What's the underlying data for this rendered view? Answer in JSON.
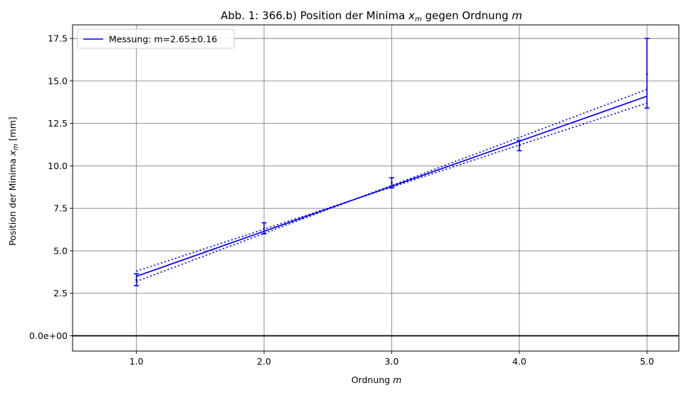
{
  "chart_data": {
    "type": "line",
    "title_prefix": "Abb. 1: 366.b) Position der Minima ",
    "title_var": "x",
    "title_var_sub": "m",
    "title_mid": " gegen Ordnung ",
    "title_var2": "m",
    "xlabel_prefix": "Ordnung ",
    "xlabel_var": "m",
    "ylabel_prefix": "Position der Minima ",
    "ylabel_var": "x",
    "ylabel_var_sub": "m",
    "ylabel_suffix": " [mm]",
    "xlim": [
      0.5,
      5.25
    ],
    "ylim": [
      -0.9,
      18.3
    ],
    "x_ticks": [
      1.0,
      2.0,
      3.0,
      4.0,
      5.0
    ],
    "x_tick_labels": [
      "1.0",
      "2.0",
      "3.0",
      "4.0",
      "5.0"
    ],
    "y_ticks": [
      0.0,
      2.5,
      5.0,
      7.5,
      10.0,
      12.5,
      15.0,
      17.5
    ],
    "y_tick_labels": [
      "0.0e+00",
      "2.5",
      "5.0",
      "7.5",
      "10.0",
      "12.5",
      "15.0",
      "17.5"
    ],
    "grid": true,
    "grid_color": "#808080",
    "zero_line": true,
    "legend_position": "top-left",
    "legend_label": "Messung: m=2.65±0.16",
    "series_color": "#0000ff",
    "measurements": [
      {
        "x": 1.0,
        "y": 3.3,
        "yerr_low": 0.35,
        "yerr_high": 0.35
      },
      {
        "x": 2.0,
        "y": 6.3,
        "yerr_low": 0.3,
        "yerr_high": 0.35
      },
      {
        "x": 3.0,
        "y": 9.0,
        "yerr_low": 0.3,
        "yerr_high": 0.3
      },
      {
        "x": 4.0,
        "y": 11.2,
        "yerr_low": 0.3,
        "yerr_high": 0.3
      },
      {
        "x": 5.0,
        "y": 15.4,
        "yerr_low": 2.0,
        "yerr_high": 2.1
      }
    ],
    "fit_line": {
      "x": [
        1.0,
        5.0
      ],
      "y": [
        3.5,
        14.1
      ]
    },
    "fit_upper": {
      "x": [
        1.0,
        5.0
      ],
      "y": [
        3.2,
        14.5
      ]
    },
    "fit_lower": {
      "x": [
        1.0,
        5.0
      ],
      "y": [
        3.8,
        13.7
      ]
    }
  }
}
